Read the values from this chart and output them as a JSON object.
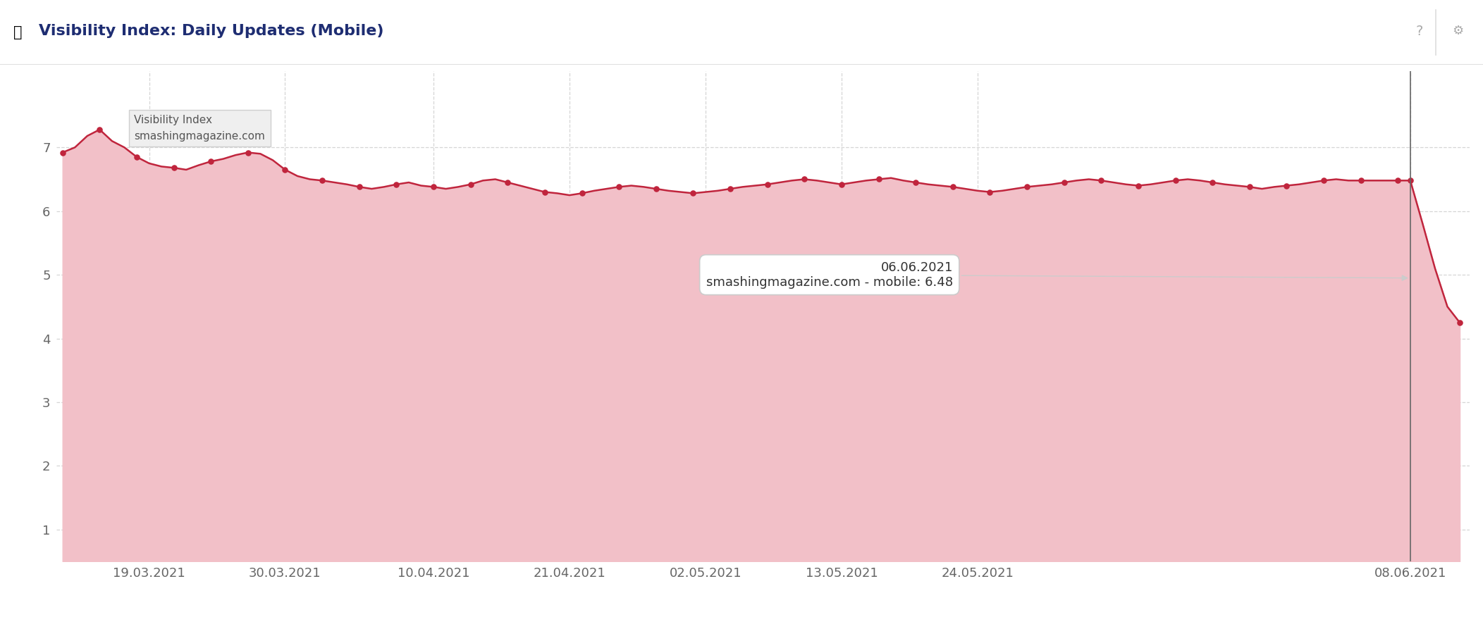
{
  "title": "Visibility Index: Daily Updates (Mobile)",
  "background_color": "#ffffff",
  "plot_bg_color": "#ffffff",
  "line_color": "#c0253d",
  "fill_color": "#f2c0c8",
  "marker_color": "#c0253d",
  "grid_color": "#cccccc",
  "x_tick_labels": [
    "19.03.2021",
    "30.03.2021",
    "10.04.2021",
    "21.04.2021",
    "02.05.2021",
    "13.05.2021",
    "24.05.2021",
    "08.06.2021"
  ],
  "y_ticks": [
    1,
    2,
    3,
    4,
    5,
    6,
    7
  ],
  "ylim": [
    0.5,
    8.2
  ],
  "tooltip_text_line1": "06.06.2021",
  "tooltip_text_line2": "smashingmagazine.com - mobile: 6.48",
  "legend_title": "Visibility Index",
  "legend_domain": "smashingmagazine.com",
  "data": [
    [
      0,
      6.92
    ],
    [
      1,
      7.0
    ],
    [
      2,
      7.18
    ],
    [
      3,
      7.28
    ],
    [
      4,
      7.1
    ],
    [
      5,
      7.0
    ],
    [
      6,
      6.85
    ],
    [
      7,
      6.75
    ],
    [
      8,
      6.7
    ],
    [
      9,
      6.68
    ],
    [
      10,
      6.65
    ],
    [
      11,
      6.72
    ],
    [
      12,
      6.78
    ],
    [
      13,
      6.82
    ],
    [
      14,
      6.88
    ],
    [
      15,
      6.92
    ],
    [
      16,
      6.9
    ],
    [
      17,
      6.8
    ],
    [
      18,
      6.65
    ],
    [
      19,
      6.55
    ],
    [
      20,
      6.5
    ],
    [
      21,
      6.48
    ],
    [
      22,
      6.45
    ],
    [
      23,
      6.42
    ],
    [
      24,
      6.38
    ],
    [
      25,
      6.35
    ],
    [
      26,
      6.38
    ],
    [
      27,
      6.42
    ],
    [
      28,
      6.45
    ],
    [
      29,
      6.4
    ],
    [
      30,
      6.38
    ],
    [
      31,
      6.35
    ],
    [
      32,
      6.38
    ],
    [
      33,
      6.42
    ],
    [
      34,
      6.48
    ],
    [
      35,
      6.5
    ],
    [
      36,
      6.45
    ],
    [
      37,
      6.4
    ],
    [
      38,
      6.35
    ],
    [
      39,
      6.3
    ],
    [
      40,
      6.28
    ],
    [
      41,
      6.25
    ],
    [
      42,
      6.28
    ],
    [
      43,
      6.32
    ],
    [
      44,
      6.35
    ],
    [
      45,
      6.38
    ],
    [
      46,
      6.4
    ],
    [
      47,
      6.38
    ],
    [
      48,
      6.35
    ],
    [
      49,
      6.32
    ],
    [
      50,
      6.3
    ],
    [
      51,
      6.28
    ],
    [
      52,
      6.3
    ],
    [
      53,
      6.32
    ],
    [
      54,
      6.35
    ],
    [
      55,
      6.38
    ],
    [
      56,
      6.4
    ],
    [
      57,
      6.42
    ],
    [
      58,
      6.45
    ],
    [
      59,
      6.48
    ],
    [
      60,
      6.5
    ],
    [
      61,
      6.48
    ],
    [
      62,
      6.45
    ],
    [
      63,
      6.42
    ],
    [
      64,
      6.45
    ],
    [
      65,
      6.48
    ],
    [
      66,
      6.5
    ],
    [
      67,
      6.52
    ],
    [
      68,
      6.48
    ],
    [
      69,
      6.45
    ],
    [
      70,
      6.42
    ],
    [
      71,
      6.4
    ],
    [
      72,
      6.38
    ],
    [
      73,
      6.35
    ],
    [
      74,
      6.32
    ],
    [
      75,
      6.3
    ],
    [
      76,
      6.32
    ],
    [
      77,
      6.35
    ],
    [
      78,
      6.38
    ],
    [
      79,
      6.4
    ],
    [
      80,
      6.42
    ],
    [
      81,
      6.45
    ],
    [
      82,
      6.48
    ],
    [
      83,
      6.5
    ],
    [
      84,
      6.48
    ],
    [
      85,
      6.45
    ],
    [
      86,
      6.42
    ],
    [
      87,
      6.4
    ],
    [
      88,
      6.42
    ],
    [
      89,
      6.45
    ],
    [
      90,
      6.48
    ],
    [
      91,
      6.5
    ],
    [
      92,
      6.48
    ],
    [
      93,
      6.45
    ],
    [
      94,
      6.42
    ],
    [
      95,
      6.4
    ],
    [
      96,
      6.38
    ],
    [
      97,
      6.35
    ],
    [
      98,
      6.38
    ],
    [
      99,
      6.4
    ],
    [
      100,
      6.42
    ],
    [
      101,
      6.45
    ],
    [
      102,
      6.48
    ],
    [
      103,
      6.5
    ],
    [
      104,
      6.48
    ],
    [
      105,
      6.48
    ],
    [
      106,
      6.48
    ],
    [
      107,
      6.48
    ],
    [
      108,
      6.48
    ],
    [
      109,
      6.48
    ],
    [
      110,
      5.8
    ],
    [
      111,
      5.1
    ],
    [
      112,
      4.5
    ],
    [
      113,
      4.25
    ]
  ],
  "marker_indices": [
    0,
    3,
    6,
    9,
    12,
    15,
    18,
    21,
    24,
    27,
    30,
    33,
    36,
    39,
    42,
    45,
    48,
    51,
    54,
    57,
    60,
    63,
    66,
    69,
    72,
    75,
    78,
    81,
    84,
    87,
    90,
    93,
    96,
    99,
    102,
    105,
    108,
    109,
    113
  ],
  "vertical_line_x": 109,
  "x_tick_positions": [
    7,
    18,
    30,
    41,
    52,
    63,
    74,
    109
  ],
  "title_fontsize": 16,
  "tick_fontsize": 13,
  "tooltip_fontsize": 13
}
